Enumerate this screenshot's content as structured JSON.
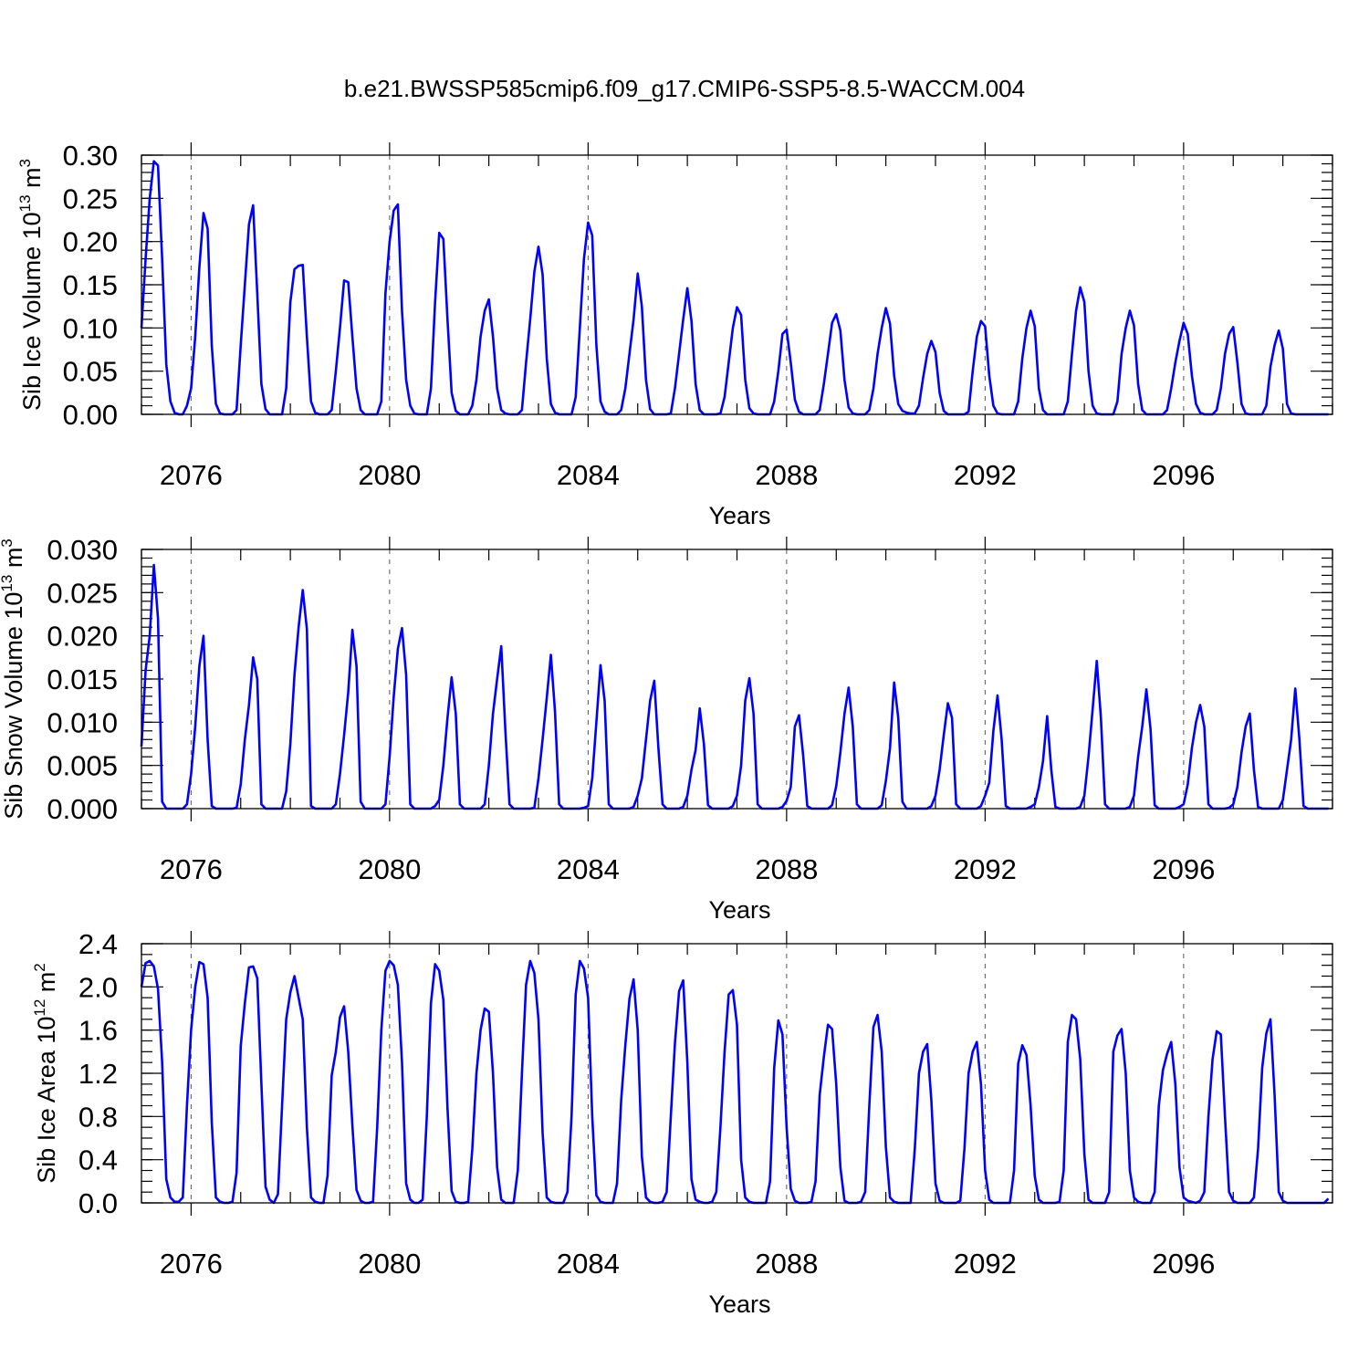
{
  "title": "b.e21.BWSSP585cmip6.f09_g17.CMIP6-SSP5-8.5-WACCM.004",
  "chart_data": [
    {
      "type": "line",
      "title": "b.e21.BWSSP585cmip6.f09_g17.CMIP6-SSP5-8.5-WACCM.004",
      "xlabel": "Years",
      "ylabel_main": "Sib Ice Volume 10",
      "ylabel_exp": "13",
      "ylabel_unit": " m",
      "ylabel_unit_exp": "3",
      "xlim": [
        2075.0,
        2099.0
      ],
      "ylim": [
        0.0,
        0.3
      ],
      "x_ticks": [
        2076,
        2080,
        2084,
        2088,
        2092,
        2096
      ],
      "x_tick_labels": [
        "2076",
        "2080",
        "2084",
        "2088",
        "2092",
        "2096"
      ],
      "y_ticks": [
        0.0,
        0.05,
        0.1,
        0.15,
        0.2,
        0.25,
        0.3
      ],
      "y_tick_labels": [
        "0.00",
        "0.05",
        "0.10",
        "0.15",
        "0.20",
        "0.25",
        "0.30"
      ],
      "y_minor_step": 0.01,
      "grid": "dashed vertical lines at 4-year ticks",
      "color": "#0000ff",
      "series": [
        {
          "name": "Sib Ice Volume",
          "start": 2075.0,
          "step_months": 1,
          "values": [
            0.1,
            0.18,
            0.25,
            0.293,
            0.288,
            0.18,
            0.058,
            0.015,
            0.002,
            0.0,
            0.0,
            0.01,
            0.03,
            0.09,
            0.17,
            0.233,
            0.215,
            0.08,
            0.012,
            0.001,
            0.0,
            0.0,
            0.0,
            0.005,
            0.08,
            0.15,
            0.22,
            0.242,
            0.14,
            0.035,
            0.006,
            0.0,
            0.0,
            0.0,
            0.0,
            0.03,
            0.13,
            0.168,
            0.172,
            0.173,
            0.09,
            0.015,
            0.002,
            0.0,
            0.0,
            0.0,
            0.005,
            0.05,
            0.1,
            0.155,
            0.153,
            0.09,
            0.03,
            0.005,
            0.0,
            0.0,
            0.0,
            0.0,
            0.015,
            0.14,
            0.2,
            0.236,
            0.243,
            0.12,
            0.04,
            0.01,
            0.001,
            0.0,
            0.0,
            0.0,
            0.03,
            0.13,
            0.21,
            0.203,
            0.11,
            0.025,
            0.004,
            0.0,
            0.0,
            0.0,
            0.01,
            0.04,
            0.09,
            0.12,
            0.133,
            0.09,
            0.03,
            0.005,
            0.001,
            0.0,
            0.0,
            0.0,
            0.005,
            0.06,
            0.11,
            0.165,
            0.194,
            0.162,
            0.065,
            0.012,
            0.002,
            0.0,
            0.0,
            0.0,
            0.0,
            0.02,
            0.1,
            0.18,
            0.222,
            0.207,
            0.08,
            0.015,
            0.003,
            0.0,
            0.0,
            0.0,
            0.005,
            0.03,
            0.07,
            0.11,
            0.163,
            0.125,
            0.04,
            0.006,
            0.0,
            0.0,
            0.0,
            0.0,
            0.001,
            0.03,
            0.07,
            0.11,
            0.146,
            0.108,
            0.035,
            0.005,
            0.0,
            0.0,
            0.0,
            0.0,
            0.001,
            0.02,
            0.06,
            0.1,
            0.124,
            0.115,
            0.04,
            0.007,
            0.001,
            0.0,
            0.0,
            0.0,
            0.0,
            0.015,
            0.05,
            0.093,
            0.098,
            0.06,
            0.017,
            0.003,
            0.0,
            0.0,
            0.0,
            0.0,
            0.005,
            0.035,
            0.07,
            0.106,
            0.116,
            0.097,
            0.04,
            0.008,
            0.001,
            0.0,
            0.0,
            0.0,
            0.005,
            0.03,
            0.07,
            0.1,
            0.123,
            0.105,
            0.045,
            0.012,
            0.004,
            0.002,
            0.001,
            0.001,
            0.01,
            0.042,
            0.07,
            0.085,
            0.072,
            0.025,
            0.004,
            0.0,
            0.0,
            0.0,
            0.0,
            0.0,
            0.003,
            0.05,
            0.09,
            0.108,
            0.102,
            0.045,
            0.01,
            0.001,
            0.0,
            0.0,
            0.0,
            0.0,
            0.015,
            0.065,
            0.1,
            0.12,
            0.102,
            0.03,
            0.005,
            0.0,
            0.0,
            0.0,
            0.0,
            0.0,
            0.015,
            0.07,
            0.12,
            0.147,
            0.13,
            0.05,
            0.01,
            0.001,
            0.0,
            0.0,
            0.0,
            0.0,
            0.015,
            0.07,
            0.1,
            0.12,
            0.103,
            0.035,
            0.005,
            0.0,
            0.0,
            0.0,
            0.0,
            0.0,
            0.005,
            0.03,
            0.06,
            0.085,
            0.106,
            0.093,
            0.045,
            0.012,
            0.002,
            0.0,
            0.0,
            0.0,
            0.005,
            0.03,
            0.07,
            0.093,
            0.101,
            0.06,
            0.012,
            0.001,
            0.0,
            0.0,
            0.0,
            0.0,
            0.01,
            0.055,
            0.08,
            0.097,
            0.076,
            0.012,
            0.001,
            0.0,
            0.0,
            0.0,
            0.0,
            0.0,
            0.0,
            0.0,
            0.0,
            0.0
          ]
        }
      ]
    },
    {
      "type": "line",
      "xlabel": "Years",
      "ylabel_main": "Sib Snow Volume 10",
      "ylabel_exp": "13",
      "ylabel_unit": " m",
      "ylabel_unit_exp": "3",
      "xlim": [
        2075.0,
        2099.0
      ],
      "ylim": [
        0.0,
        0.03
      ],
      "x_ticks": [
        2076,
        2080,
        2084,
        2088,
        2092,
        2096
      ],
      "x_tick_labels": [
        "2076",
        "2080",
        "2084",
        "2088",
        "2092",
        "2096"
      ],
      "y_ticks": [
        0.0,
        0.005,
        0.01,
        0.015,
        0.02,
        0.025,
        0.03
      ],
      "y_tick_labels": [
        "0.000",
        "0.005",
        "0.010",
        "0.015",
        "0.020",
        "0.025",
        "0.030"
      ],
      "y_minor_step": 0.001,
      "grid": "dashed vertical lines at 4-year ticks",
      "color": "#0000ff",
      "series": [
        {
          "name": "Sib Snow Volume",
          "start": 2075.0,
          "step_months": 1,
          "values": [
            0.0072,
            0.016,
            0.02,
            0.0282,
            0.022,
            0.0008,
            0.0,
            0.0,
            0.0,
            0.0,
            0.0,
            0.0005,
            0.004,
            0.0095,
            0.0165,
            0.02,
            0.008,
            0.0003,
            0.0,
            0.0,
            0.0,
            0.0,
            0.0,
            0.0001,
            0.0028,
            0.008,
            0.012,
            0.0175,
            0.015,
            0.0005,
            0.0,
            0.0,
            0.0,
            0.0,
            0.0,
            0.002,
            0.0075,
            0.0155,
            0.021,
            0.0253,
            0.0208,
            0.0003,
            0.0,
            0.0,
            0.0,
            0.0,
            0.0,
            0.0005,
            0.004,
            0.0085,
            0.0135,
            0.0207,
            0.0165,
            0.0008,
            0.0,
            0.0,
            0.0,
            0.0,
            0.0,
            0.0005,
            0.006,
            0.013,
            0.0185,
            0.0209,
            0.0155,
            0.0005,
            0.0,
            0.0,
            0.0,
            0.0,
            0.0,
            0.0003,
            0.001,
            0.005,
            0.0105,
            0.0152,
            0.011,
            0.0005,
            0.0,
            0.0,
            0.0,
            0.0,
            0.0,
            0.0005,
            0.005,
            0.011,
            0.015,
            0.0188,
            0.009,
            0.0005,
            0.0,
            0.0,
            0.0,
            0.0,
            0.0,
            0.0001,
            0.0035,
            0.008,
            0.0128,
            0.0178,
            0.0112,
            0.0005,
            0.0,
            0.0,
            0.0,
            0.0,
            0.0,
            0.0001,
            0.0003,
            0.0035,
            0.01,
            0.0166,
            0.0125,
            0.0005,
            0.0,
            0.0,
            0.0,
            0.0,
            0.0,
            0.0002,
            0.0015,
            0.0035,
            0.008,
            0.0125,
            0.0148,
            0.007,
            0.0005,
            0.0,
            0.0,
            0.0,
            0.0,
            0.0002,
            0.0015,
            0.0045,
            0.0068,
            0.0116,
            0.0075,
            0.0004,
            0.0,
            0.0,
            0.0,
            0.0,
            0.0,
            0.0003,
            0.0015,
            0.005,
            0.0125,
            0.0151,
            0.011,
            0.0005,
            0.0,
            0.0,
            0.0,
            0.0,
            0.0,
            0.0002,
            0.0009,
            0.0025,
            0.0095,
            0.0108,
            0.0062,
            0.0003,
            0.0,
            0.0,
            0.0,
            0.0,
            0.0,
            0.0004,
            0.0026,
            0.0065,
            0.011,
            0.014,
            0.0095,
            0.0005,
            0.0,
            0.0,
            0.0,
            0.0,
            0.0,
            0.0004,
            0.0032,
            0.007,
            0.0146,
            0.0105,
            0.0008,
            0.0,
            0.0,
            0.0,
            0.0,
            0.0,
            0.0,
            0.0003,
            0.0015,
            0.0045,
            0.0085,
            0.0122,
            0.0105,
            0.0005,
            0.0,
            0.0,
            0.0,
            0.0,
            0.0,
            0.0003,
            0.0015,
            0.003,
            0.009,
            0.0131,
            0.008,
            0.0003,
            0.0,
            0.0,
            0.0,
            0.0,
            0.0,
            0.0002,
            0.0005,
            0.0025,
            0.0055,
            0.0107,
            0.0045,
            0.0002,
            0.0,
            0.0,
            0.0,
            0.0,
            0.0,
            0.0002,
            0.0015,
            0.006,
            0.0115,
            0.0171,
            0.0105,
            0.0005,
            0.0,
            0.0,
            0.0,
            0.0,
            0.0,
            0.0002,
            0.0015,
            0.006,
            0.0095,
            0.0138,
            0.0092,
            0.0004,
            0.0,
            0.0,
            0.0,
            0.0,
            0.0,
            0.0002,
            0.0005,
            0.0028,
            0.007,
            0.01,
            0.012,
            0.0095,
            0.0005,
            0.0,
            0.0,
            0.0,
            0.0,
            0.0001,
            0.0005,
            0.0025,
            0.0065,
            0.0095,
            0.011,
            0.0045,
            0.0002,
            0.0,
            0.0,
            0.0,
            0.0,
            0.0,
            0.001,
            0.0045,
            0.008,
            0.0139,
            0.008,
            0.0003,
            0.0,
            0.0,
            0.0,
            0.0,
            0.0,
            0.0
          ]
        }
      ]
    },
    {
      "type": "line",
      "xlabel": "Years",
      "ylabel_main": "Sib Ice Area 10",
      "ylabel_exp": "12",
      "ylabel_unit": " m",
      "ylabel_unit_exp": "2",
      "xlim": [
        2075.0,
        2099.0
      ],
      "ylim": [
        0.0,
        2.4
      ],
      "x_ticks": [
        2076,
        2080,
        2084,
        2088,
        2092,
        2096
      ],
      "x_tick_labels": [
        "2076",
        "2080",
        "2084",
        "2088",
        "2092",
        "2096"
      ],
      "y_ticks": [
        0.0,
        0.4,
        0.8,
        1.2,
        1.6,
        2.0,
        2.4
      ],
      "y_tick_labels": [
        "0.0",
        "0.4",
        "0.8",
        "1.2",
        "1.6",
        "2.0",
        "2.4"
      ],
      "y_minor_step": 0.1,
      "grid": "dashed vertical lines at 4-year ticks",
      "color": "#0000ff",
      "series": [
        {
          "name": "Sib Ice Area",
          "start": 2075.0,
          "step_months": 1,
          "values": [
            2.0,
            2.22,
            2.24,
            2.19,
            1.98,
            1.3,
            0.22,
            0.05,
            0.01,
            0.01,
            0.05,
            0.9,
            1.6,
            2.0,
            2.23,
            2.21,
            1.9,
            0.75,
            0.05,
            0.01,
            0.0,
            0.0,
            0.01,
            0.28,
            1.45,
            1.85,
            2.18,
            2.19,
            2.08,
            1.1,
            0.15,
            0.03,
            0.0,
            0.08,
            0.9,
            1.7,
            1.95,
            2.1,
            1.9,
            1.7,
            0.7,
            0.05,
            0.01,
            0.0,
            0.0,
            0.25,
            1.18,
            1.4,
            1.72,
            1.82,
            1.4,
            0.72,
            0.12,
            0.02,
            0.0,
            0.0,
            0.01,
            0.7,
            1.6,
            2.15,
            2.24,
            2.2,
            2.02,
            1.3,
            0.18,
            0.03,
            0.0,
            0.0,
            0.03,
            0.8,
            1.85,
            2.21,
            2.15,
            1.88,
            0.88,
            0.11,
            0.01,
            0.0,
            0.0,
            0.01,
            0.5,
            1.2,
            1.6,
            1.8,
            1.77,
            1.2,
            0.33,
            0.03,
            0.0,
            0.0,
            0.0,
            0.3,
            1.2,
            2.02,
            2.24,
            2.13,
            1.7,
            0.65,
            0.05,
            0.01,
            0.0,
            0.0,
            0.0,
            0.1,
            0.8,
            1.93,
            2.24,
            2.17,
            1.9,
            0.8,
            0.07,
            0.01,
            0.0,
            0.0,
            0.0,
            0.18,
            0.95,
            1.46,
            1.89,
            2.07,
            1.6,
            0.43,
            0.05,
            0.01,
            0.0,
            0.0,
            0.01,
            0.1,
            0.8,
            1.48,
            1.96,
            2.06,
            1.3,
            0.22,
            0.03,
            0.01,
            0.0,
            0.0,
            0.01,
            0.1,
            0.7,
            1.4,
            1.93,
            1.97,
            1.65,
            0.4,
            0.05,
            0.01,
            0.0,
            0.0,
            0.0,
            0.0,
            0.2,
            1.25,
            1.69,
            1.56,
            0.7,
            0.13,
            0.02,
            0.0,
            0.0,
            0.0,
            0.01,
            0.2,
            1.0,
            1.35,
            1.65,
            1.61,
            1.1,
            0.33,
            0.02,
            0.0,
            0.0,
            0.0,
            0.01,
            0.1,
            0.9,
            1.63,
            1.74,
            1.4,
            0.52,
            0.05,
            0.01,
            0.0,
            0.0,
            0.0,
            0.0,
            0.5,
            1.2,
            1.4,
            1.47,
            0.95,
            0.18,
            0.02,
            0.0,
            0.0,
            0.0,
            0.0,
            0.02,
            0.5,
            1.2,
            1.4,
            1.49,
            1.1,
            0.3,
            0.03,
            0.0,
            0.0,
            0.0,
            0.0,
            0.0,
            0.3,
            1.29,
            1.46,
            1.37,
            0.9,
            0.25,
            0.03,
            0.0,
            0.0,
            0.0,
            0.0,
            0.01,
            0.3,
            1.49,
            1.74,
            1.7,
            1.33,
            0.45,
            0.03,
            0.0,
            0.0,
            0.0,
            0.0,
            0.1,
            1.4,
            1.55,
            1.61,
            1.2,
            0.3,
            0.05,
            0.01,
            0.0,
            0.0,
            0.0,
            0.1,
            0.9,
            1.23,
            1.38,
            1.49,
            1.1,
            0.33,
            0.05,
            0.02,
            0.01,
            0.0,
            0.02,
            0.1,
            0.8,
            1.33,
            1.59,
            1.56,
            0.8,
            0.1,
            0.02,
            0.0,
            0.0,
            0.0,
            0.0,
            0.05,
            0.5,
            1.25,
            1.57,
            1.7,
            1.0,
            0.1,
            0.02,
            0.0,
            0.0,
            0.0,
            0.0,
            0.0,
            0.0,
            0.0,
            0.0,
            0.0,
            0.0,
            0.04
          ]
        }
      ]
    }
  ]
}
